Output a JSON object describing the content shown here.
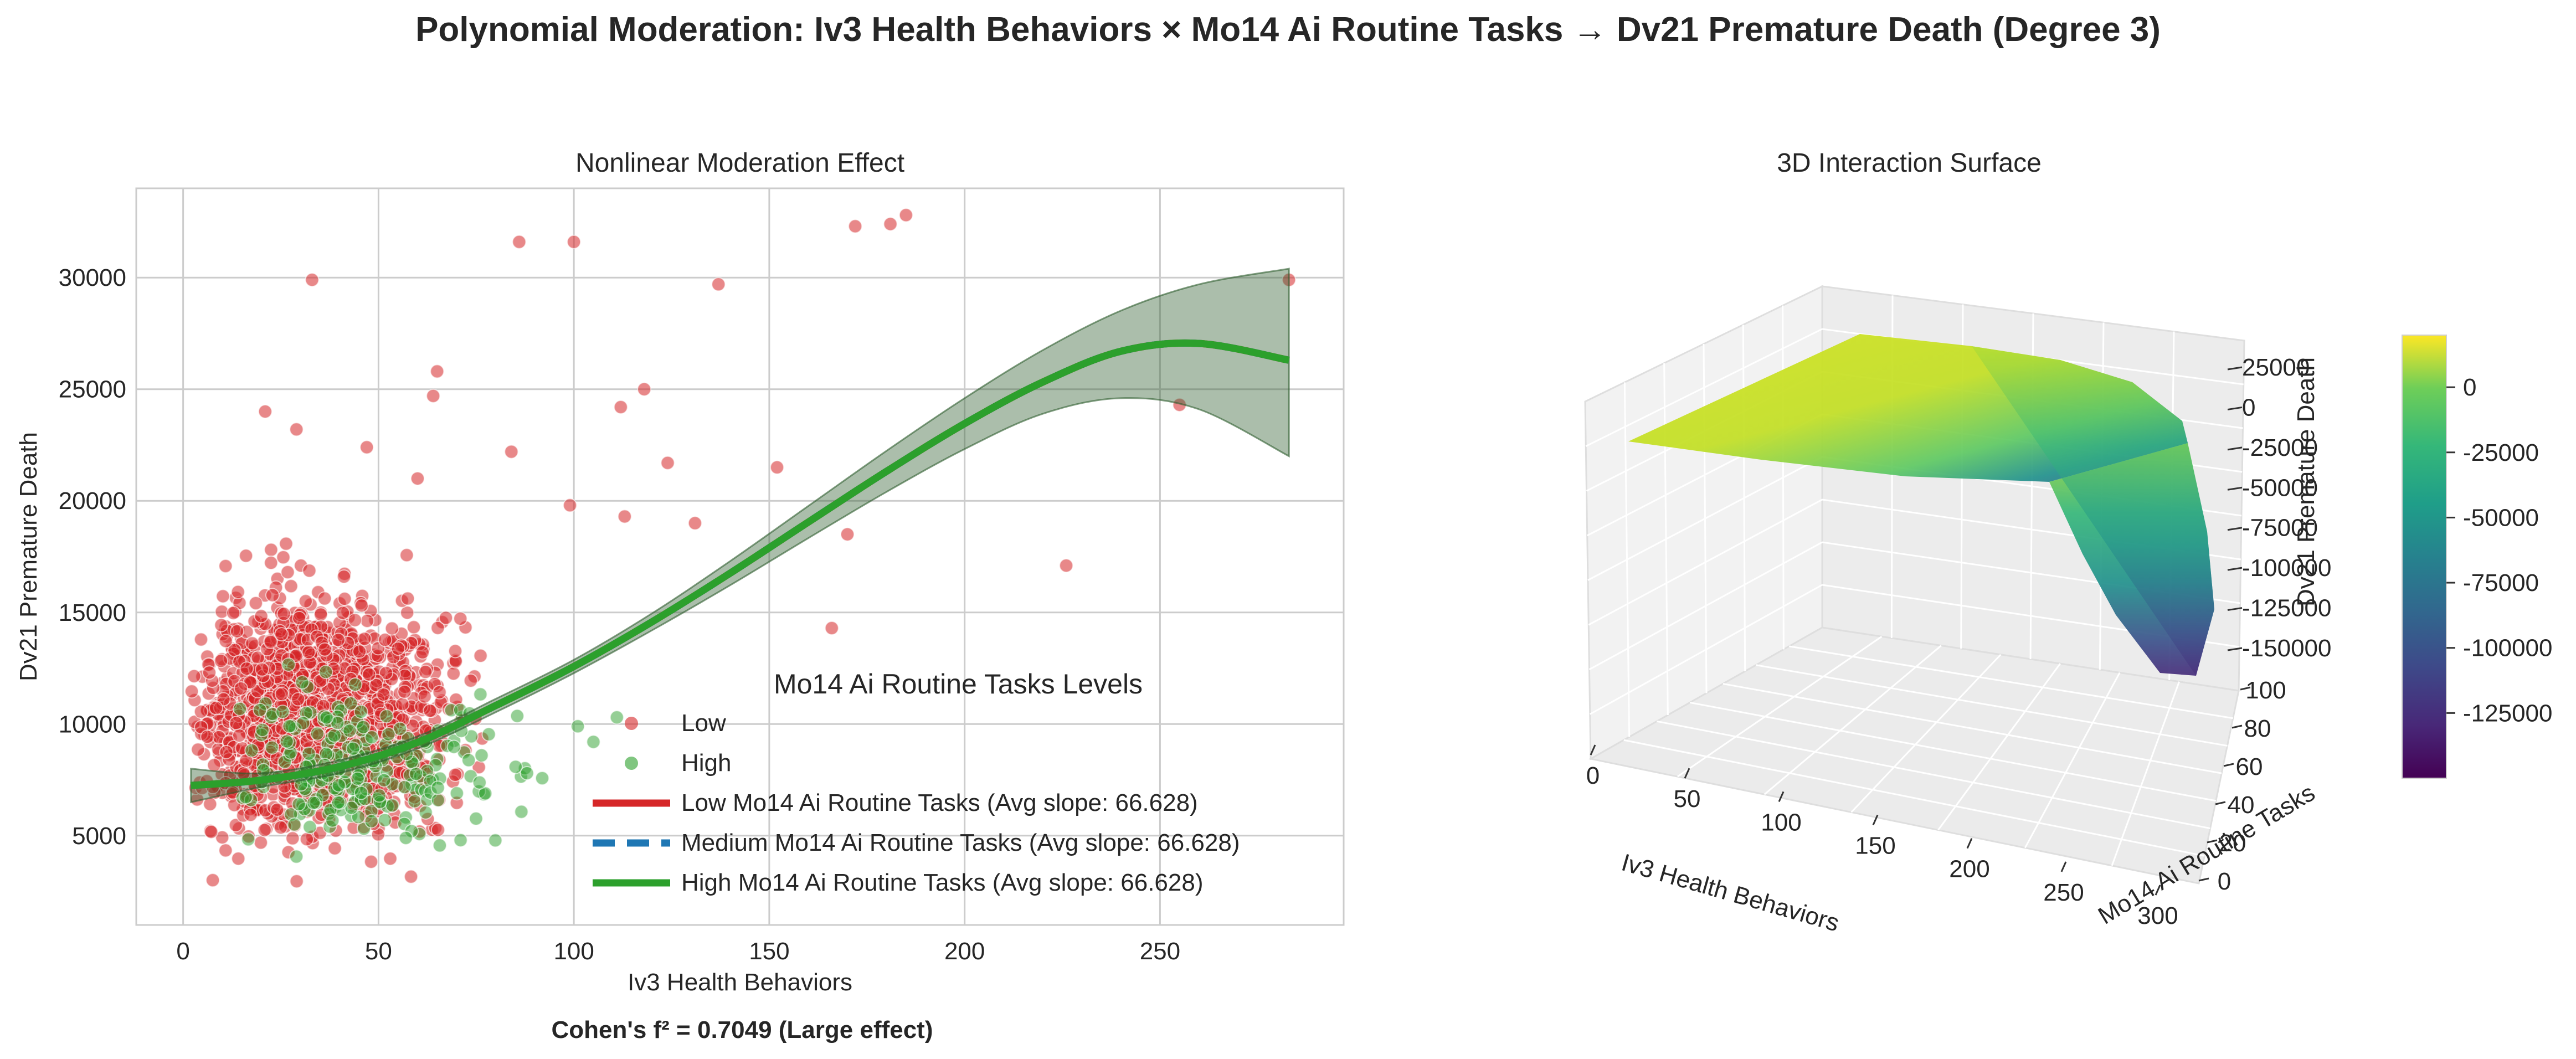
{
  "figure": {
    "title": "Polynomial Moderation: Iv3 Health Behaviors × Mo14 Ai Routine Tasks → Dv21 Premature Death (Degree 3)",
    "effect_size": "Cohen's f² = 0.7049 (Large effect)"
  },
  "colors": {
    "low": "#d62728",
    "medium": "#1f77b4",
    "high": "#2ca02c",
    "band": "#2e5d2e",
    "grid": "#cccccc"
  },
  "chart_data": [
    {
      "type": "scatter",
      "title": "Nonlinear Moderation Effect",
      "xlabel": "Iv3 Health Behaviors",
      "ylabel": "Dv21 Premature Death",
      "xlim": [
        -12,
        297
      ],
      "ylim": [
        1000,
        34000
      ],
      "xticks": [
        0,
        50,
        100,
        150,
        200,
        250
      ],
      "yticks": [
        5000,
        10000,
        15000,
        20000,
        25000,
        30000
      ],
      "grid": true,
      "legend": {
        "title": "Mo14 Ai Routine Tasks Levels",
        "placement": "lower-right",
        "entries": [
          {
            "label": "Low",
            "kind": "marker",
            "color_key": "low"
          },
          {
            "label": "High",
            "kind": "marker",
            "color_key": "high"
          },
          {
            "label": "Low Mo14 Ai Routine Tasks (Avg slope: 66.628)",
            "kind": "line",
            "color_key": "low"
          },
          {
            "label": "Medium Mo14 Ai Routine Tasks (Avg slope: 66.628)",
            "kind": "dashed",
            "color_key": "medium"
          },
          {
            "label": "High Mo14 Ai Routine Tasks (Avg slope: 66.628)",
            "kind": "line",
            "color_key": "high"
          }
        ]
      },
      "scatter_series": [
        {
          "name": "Low",
          "cluster": {
            "n": 1500,
            "x_center": 30,
            "x_spread": 18,
            "y_center": 10500,
            "y_spread": 3300
          },
          "outliers": [
            [
              33,
              29900
            ],
            [
              86,
              31600
            ],
            [
              100,
              31600
            ],
            [
              137,
              29700
            ],
            [
              172,
              32300
            ],
            [
              185,
              32800
            ],
            [
              181,
              32400
            ],
            [
              65,
              25800
            ],
            [
              21,
              24000
            ],
            [
              29,
              23200
            ],
            [
              118,
              25000
            ],
            [
              112,
              24200
            ],
            [
              84,
              22200
            ],
            [
              124,
              21700
            ],
            [
              152,
              21500
            ],
            [
              170,
              18500
            ],
            [
              113,
              19300
            ],
            [
              131,
              19000
            ],
            [
              99,
              19800
            ],
            [
              226,
              17100
            ],
            [
              166,
              14300
            ],
            [
              255,
              24300
            ],
            [
              283,
              29900
            ],
            [
              64,
              24700
            ],
            [
              47,
              22400
            ],
            [
              60,
              21000
            ]
          ]
        },
        {
          "name": "High",
          "cluster": {
            "n": 230,
            "x_center": 42,
            "x_spread": 20,
            "y_center": 8300,
            "y_spread": 2300
          },
          "outliers": [
            [
              101,
              9900
            ],
            [
              105,
              9200
            ],
            [
              111,
              10300
            ],
            [
              88,
              7800
            ],
            [
              71,
              4800
            ],
            [
              57,
              4900
            ]
          ]
        }
      ],
      "fit_lines": {
        "x": [
          2,
          20,
          40,
          60,
          80,
          100,
          120,
          140,
          160,
          180,
          200,
          220,
          240,
          260,
          283
        ],
        "series": [
          {
            "name": "Low Mo14 Ai Routine Tasks (Avg slope: 66.628)",
            "color_key": "low",
            "style": "solid",
            "values": [
              7250,
              7490,
              8090,
              9180,
              10830,
              12580,
              14580,
              16760,
              19050,
              21320,
              23460,
              25320,
              26700,
              27050,
              26300
            ]
          },
          {
            "name": "Medium Mo14 Ai Routine Tasks (Avg slope: 66.628)",
            "color_key": "medium",
            "style": "dashed",
            "values": [
              7250,
              7490,
              8090,
              9180,
              10830,
              12580,
              14580,
              16760,
              19050,
              21320,
              23460,
              25320,
              26700,
              27050,
              26300
            ]
          },
          {
            "name": "High Mo14 Ai Routine Tasks (Avg slope: 66.628)",
            "color_key": "high",
            "style": "solid",
            "values": [
              7250,
              7490,
              8090,
              9180,
              10830,
              12580,
              14580,
              16760,
              19050,
              21320,
              23460,
              25320,
              26700,
              27050,
              26300
            ]
          }
        ],
        "band_upper": [
          8000,
          7800,
          8380,
          9450,
          11130,
          12880,
          14960,
          17300,
          19770,
          22240,
          24600,
          26750,
          28520,
          29700,
          30400
        ],
        "band_lower": [
          6500,
          7180,
          7800,
          8900,
          10530,
          12280,
          14200,
          16220,
          18330,
          20400,
          22320,
          23900,
          24600,
          24100,
          22000
        ]
      }
    },
    {
      "type": "surface3d",
      "title": "3D Interaction Surface",
      "xlabel": "Iv3 Health Behaviors",
      "ylabel": "Mo14 Ai Routine Tasks",
      "zlabel": "Dv21 Premature Death",
      "xticks": [
        0,
        50,
        100,
        150,
        200,
        250,
        300
      ],
      "yticks": [
        0,
        20,
        40,
        60,
        80,
        100
      ],
      "zticks": [
        25000,
        0,
        -25000,
        -50000,
        -75000,
        -100000,
        -125000,
        -150000
      ],
      "zlim": [
        -160000,
        30000
      ],
      "surface_profile": {
        "x": [
          0,
          30,
          60,
          90,
          120,
          150,
          180,
          210,
          240,
          270,
          300
        ],
        "z_at_moderator_max": [
          7000,
          8000,
          9000,
          12000,
          16000,
          19000,
          17000,
          9000,
          -12000,
          -58000,
          -150000
        ],
        "z_at_moderator_min": [
          7000,
          8000,
          9000,
          12000,
          16000,
          19000,
          19000,
          17000,
          14000,
          10000,
          5000
        ]
      },
      "colorbar": {
        "colormap": "viridis",
        "ticks": [
          0,
          -25000,
          -50000,
          -75000,
          -100000,
          -125000
        ],
        "range": [
          -150000,
          20000
        ]
      }
    }
  ]
}
